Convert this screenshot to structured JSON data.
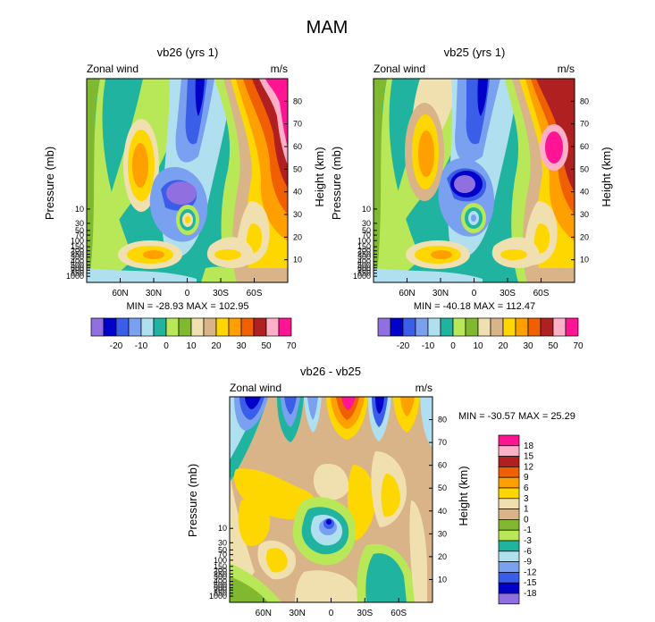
{
  "figure": {
    "main_title": "MAM",
    "colors": {
      "palette_main": [
        "#9070e0",
        "#0000c8",
        "#3b5ee8",
        "#7aa0f0",
        "#b0e0f0",
        "#20b4a0",
        "#b8e858",
        "#80b830",
        "#f0e0b0",
        "#d8b488",
        "#ffd700",
        "#ffa000",
        "#f06000",
        "#b02020",
        "#ffb0c8",
        "#ff1493"
      ],
      "palette_diff": [
        "#9070e0",
        "#0000c8",
        "#3b5ee8",
        "#7aa0f0",
        "#b0e0f0",
        "#20b4a0",
        "#b8e858",
        "#80b830",
        "#d8b488",
        "#f0e0b0",
        "#ffd700",
        "#ffa000",
        "#f06000",
        "#b02020",
        "#ffb0c8",
        "#ff1493"
      ]
    }
  },
  "chart_data": [
    {
      "type": "heatmap",
      "title": "vb26 (yrs 1)",
      "left_string": "Zonal wind",
      "right_string": "m/s",
      "ylabel": "Pressure (mb)",
      "ylabel_right": "Height (km)",
      "x_ticks": [
        "60N",
        "30N",
        "0",
        "30S",
        "60S"
      ],
      "x_tick_values": [
        60,
        30,
        0,
        -30,
        -60
      ],
      "xlim": [
        90,
        -90
      ],
      "y_ticks_left": [
        "10",
        "30",
        "50",
        "70",
        "100",
        "150",
        "200",
        "250",
        "300",
        "400",
        "500",
        "600",
        "700",
        "850",
        "1000"
      ],
      "y_ticks_right": [
        "80",
        "70",
        "60",
        "50",
        "40",
        "30",
        "20",
        "10"
      ],
      "ylim_height_km": [
        0,
        90
      ],
      "stats": "MIN = -28.93  MAX = 102.95",
      "colorbar_labels": [
        "-20",
        "-10",
        "0",
        "10",
        "20",
        "30",
        "50",
        "70"
      ],
      "colorbar_levels": [
        -25,
        -20,
        -15,
        -10,
        -5,
        0,
        5,
        10,
        15,
        20,
        25,
        30,
        40,
        50,
        60,
        70
      ]
    },
    {
      "type": "heatmap",
      "title": "vb25 (yrs 1)",
      "left_string": "Zonal wind",
      "right_string": "m/s",
      "ylabel": "Pressure (mb)",
      "ylabel_right": "Height (km)",
      "x_ticks": [
        "60N",
        "30N",
        "0",
        "30S",
        "60S"
      ],
      "x_tick_values": [
        60,
        30,
        0,
        -30,
        -60
      ],
      "xlim": [
        90,
        -90
      ],
      "y_ticks_left": [
        "10",
        "30",
        "50",
        "70",
        "100",
        "150",
        "200",
        "250",
        "300",
        "400",
        "500",
        "600",
        "700",
        "850",
        "1000"
      ],
      "y_ticks_right": [
        "80",
        "70",
        "60",
        "50",
        "40",
        "30",
        "20",
        "10"
      ],
      "ylim_height_km": [
        0,
        90
      ],
      "stats": "MIN = -40.18  MAX = 112.47",
      "colorbar_labels": [
        "-20",
        "-10",
        "0",
        "10",
        "20",
        "30",
        "50",
        "70"
      ],
      "colorbar_levels": [
        -25,
        -20,
        -15,
        -10,
        -5,
        0,
        5,
        10,
        15,
        20,
        25,
        30,
        40,
        50,
        60,
        70
      ]
    },
    {
      "type": "heatmap",
      "title": "vb26 - vb25",
      "left_string": "Zonal wind",
      "right_string": "m/s",
      "ylabel": "Pressure (mb)",
      "ylabel_right": "Height (km)",
      "x_ticks": [
        "60N",
        "30N",
        "0",
        "30S",
        "60S"
      ],
      "x_tick_values": [
        60,
        30,
        0,
        -30,
        -60
      ],
      "xlim": [
        90,
        -90
      ],
      "y_ticks_left": [
        "10",
        "30",
        "50",
        "70",
        "100",
        "150",
        "200",
        "250",
        "300",
        "400",
        "500",
        "600",
        "700",
        "850",
        "1000"
      ],
      "y_ticks_right": [
        "80",
        "70",
        "60",
        "50",
        "40",
        "30",
        "20",
        "10"
      ],
      "ylim_height_km": [
        0,
        90
      ],
      "stats": "MIN = -30.57  MAX =  25.29",
      "colorbar_labels": [
        "18",
        "15",
        "12",
        "9",
        "6",
        "3",
        "1",
        "0",
        "-1",
        "-3",
        "-6",
        "-9",
        "-12",
        "-15",
        "-18"
      ]
    }
  ]
}
